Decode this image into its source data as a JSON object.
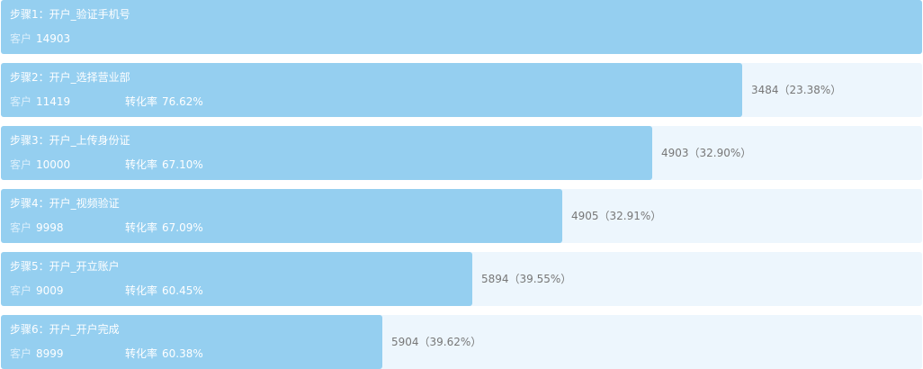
{
  "chart_data": {
    "type": "funnel",
    "customer_label": "客户",
    "conversion_label": "转化率",
    "steps": [
      {
        "label": "步骤1：开户_验证手机号",
        "customers": 14903,
        "conversion": "",
        "dropoff": ""
      },
      {
        "label": "步骤2：开户_选择营业部",
        "customers": 11419,
        "conversion": "76.62%",
        "dropoff": "3484（23.38%）"
      },
      {
        "label": "步骤3：开户_上传身份证",
        "customers": 10000,
        "conversion": "67.10%",
        "dropoff": "4903（32.90%）"
      },
      {
        "label": "步骤4：开户_视频验证",
        "customers": 9998,
        "conversion": "67.09%",
        "dropoff": "4905（32.91%）"
      },
      {
        "label": "步骤5：开户_开立账户",
        "customers": 9009,
        "conversion": "60.45%",
        "dropoff": "5894（39.55%）"
      },
      {
        "label": "步骤6：开户_开户完成",
        "customers": 8999,
        "conversion": "60.38%",
        "dropoff": "5904（39.62%）"
      }
    ]
  }
}
